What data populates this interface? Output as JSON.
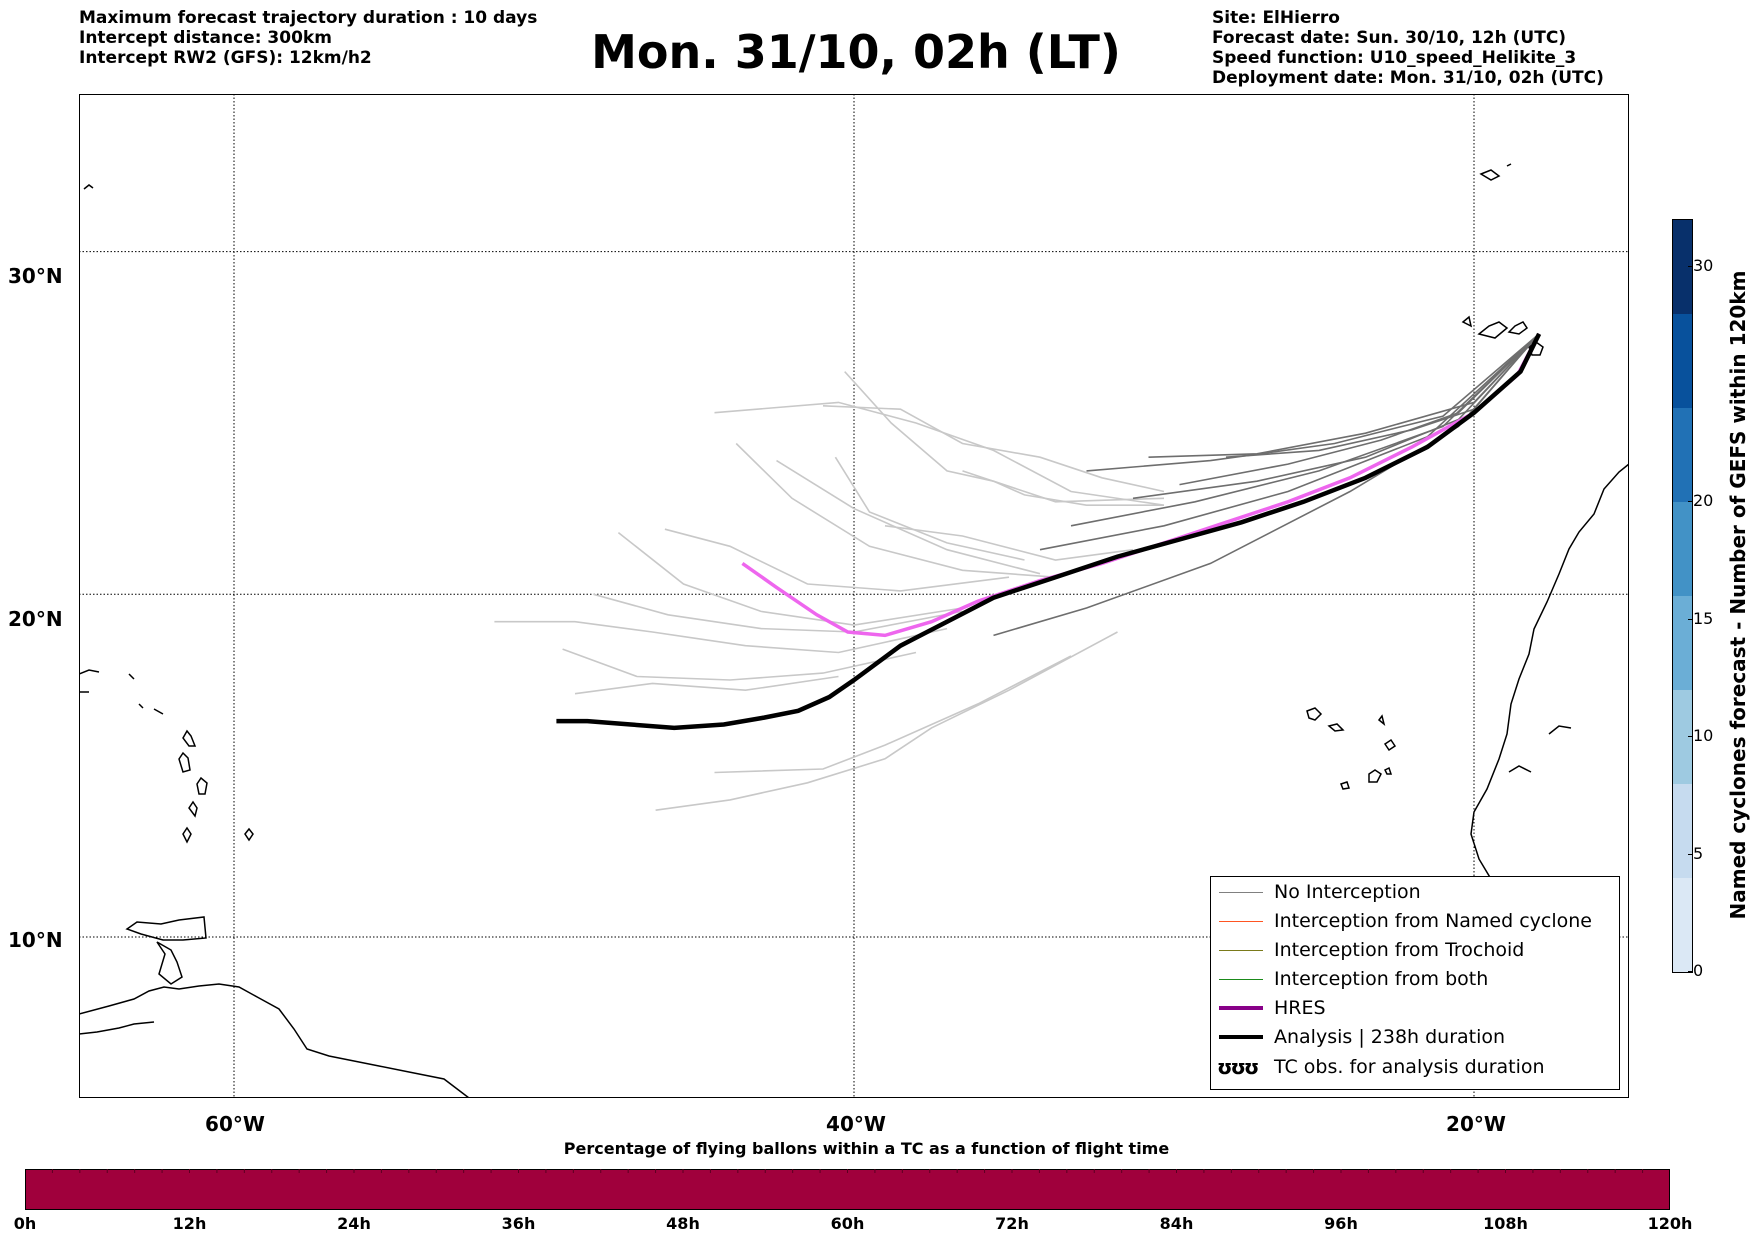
{
  "header_left": {
    "line1": "Maximum forecast trajectory duration : 10 days",
    "line2": "Intercept distance: 300km",
    "line3": "Intercept RW2 (GFS):  12km/h2"
  },
  "title": "Mon. 31/10, 02h (LT)",
  "header_right": {
    "line1": "Site: ElHierro",
    "line2": "Forecast date: Sun. 30/10, 12h (UTC)",
    "line3": "Speed function: U10_speed_Helikite_3",
    "line4": "Deployment date: Mon. 31/10, 02h (UTC)"
  },
  "map": {
    "lat_labels": [
      "30°N",
      "20°N",
      "10°N"
    ],
    "lon_labels": [
      "60°W",
      "40°W",
      "20°W"
    ],
    "lon_range": [
      -65,
      -15
    ],
    "lat_range": [
      5.3,
      34.6
    ],
    "gridlines": {
      "lats": [
        30,
        20,
        10
      ],
      "lons": [
        -60,
        -40,
        -20
      ]
    },
    "colors": {
      "analysis": "#000000",
      "hres": "#ee66ee",
      "no_interception_dark": "#6e6e6e",
      "no_interception_light": "#c8c8c8",
      "coast": "#000000"
    },
    "analysis_track": [
      [
        -49.6,
        16.3
      ],
      [
        -48.6,
        16.3
      ],
      [
        -47.2,
        16.2
      ],
      [
        -45.8,
        16.1
      ],
      [
        -44.2,
        16.2
      ],
      [
        -42.9,
        16.4
      ],
      [
        -41.8,
        16.6
      ],
      [
        -40.8,
        17.0
      ],
      [
        -40.0,
        17.5
      ],
      [
        -38.5,
        18.5
      ],
      [
        -37.0,
        19.2
      ],
      [
        -35.5,
        19.9
      ],
      [
        -33.5,
        20.5
      ],
      [
        -31.5,
        21.1
      ],
      [
        -29.5,
        21.6
      ],
      [
        -27.5,
        22.1
      ],
      [
        -25.5,
        22.7
      ],
      [
        -23.5,
        23.4
      ],
      [
        -21.5,
        24.3
      ],
      [
        -20.0,
        25.3
      ],
      [
        -18.5,
        26.5
      ],
      [
        -17.9,
        27.6
      ]
    ],
    "hres_track": [
      [
        -43.6,
        20.9
      ],
      [
        -42.5,
        20.2
      ],
      [
        -41.2,
        19.4
      ],
      [
        -40.2,
        18.9
      ],
      [
        -39.0,
        18.8
      ],
      [
        -37.5,
        19.2
      ],
      [
        -36.0,
        19.8
      ],
      [
        -34.0,
        20.4
      ],
      [
        -32.0,
        20.9
      ],
      [
        -30.0,
        21.5
      ],
      [
        -28.0,
        22.1
      ],
      [
        -26.0,
        22.7
      ],
      [
        -24.0,
        23.4
      ],
      [
        -22.0,
        24.3
      ],
      [
        -20.0,
        25.3
      ],
      [
        -18.6,
        26.4
      ],
      [
        -17.9,
        27.6
      ]
    ],
    "ensemble_tracks": [
      [
        [
          -28.0,
          24.0
        ],
        [
          -25.0,
          24.2
        ],
        [
          -22.0,
          24.8
        ],
        [
          -20.0,
          25.4
        ],
        [
          -17.9,
          27.6
        ]
      ],
      [
        [
          -29.5,
          23.2
        ],
        [
          -26.0,
          23.8
        ],
        [
          -23.0,
          24.5
        ],
        [
          -20.5,
          25.3
        ],
        [
          -17.9,
          27.6
        ]
      ],
      [
        [
          -31.0,
          22.8
        ],
        [
          -27.0,
          23.3
        ],
        [
          -23.5,
          24.0
        ],
        [
          -20.5,
          25.1
        ],
        [
          -17.9,
          27.6
        ]
      ],
      [
        [
          -33.0,
          22.0
        ],
        [
          -29.0,
          22.7
        ],
        [
          -25.0,
          23.6
        ],
        [
          -21.0,
          24.9
        ],
        [
          -17.9,
          27.6
        ]
      ],
      [
        [
          -34.0,
          21.3
        ],
        [
          -30.0,
          22.0
        ],
        [
          -26.0,
          23.0
        ],
        [
          -21.5,
          24.6
        ],
        [
          -17.9,
          27.6
        ]
      ],
      [
        [
          -35.5,
          18.8
        ],
        [
          -32.5,
          19.6
        ],
        [
          -28.5,
          20.9
        ],
        [
          -24.0,
          23.0
        ],
        [
          -20.5,
          24.9
        ],
        [
          -17.9,
          27.6
        ]
      ],
      [
        [
          -30.5,
          24.0
        ],
        [
          -27.0,
          24.1
        ],
        [
          -23.5,
          24.7
        ],
        [
          -20.0,
          25.6
        ],
        [
          -17.9,
          27.6
        ]
      ],
      [
        [
          -32.5,
          23.6
        ],
        [
          -28.5,
          23.9
        ],
        [
          -24.5,
          24.4
        ],
        [
          -21.0,
          25.2
        ],
        [
          -17.9,
          27.6
        ]
      ]
    ],
    "ensemble_light_tracks": [
      [
        [
          -40.3,
          26.5
        ],
        [
          -38.8,
          25.0
        ],
        [
          -37.0,
          23.6
        ],
        [
          -35.5,
          23.3
        ],
        [
          -33.5,
          22.7
        ],
        [
          -30.0,
          22.8
        ]
      ],
      [
        [
          -41.0,
          25.5
        ],
        [
          -38.5,
          25.4
        ],
        [
          -36.5,
          24.4
        ],
        [
          -34.0,
          24.0
        ],
        [
          -32.0,
          23.4
        ],
        [
          -30.0,
          23.0
        ]
      ],
      [
        [
          -44.5,
          25.3
        ],
        [
          -40.5,
          25.6
        ],
        [
          -38.0,
          25.0
        ],
        [
          -35.5,
          24.2
        ],
        [
          -33.0,
          23.0
        ],
        [
          -30.0,
          22.6
        ]
      ],
      [
        [
          -43.8,
          24.4
        ],
        [
          -42.0,
          22.8
        ],
        [
          -39.5,
          21.4
        ],
        [
          -36.5,
          20.7
        ],
        [
          -33.5,
          20.5
        ]
      ],
      [
        [
          -42.5,
          23.9
        ],
        [
          -40.0,
          22.5
        ],
        [
          -37.0,
          21.3
        ],
        [
          -34.0,
          20.6
        ]
      ],
      [
        [
          -40.6,
          24.0
        ],
        [
          -39.5,
          22.4
        ],
        [
          -37.0,
          21.5
        ],
        [
          -34.5,
          21.0
        ]
      ],
      [
        [
          -46.1,
          21.9
        ],
        [
          -44.0,
          21.4
        ],
        [
          -41.5,
          20.3
        ],
        [
          -38.5,
          20.1
        ],
        [
          -35.0,
          20.5
        ]
      ],
      [
        [
          -47.6,
          21.8
        ],
        [
          -45.5,
          20.3
        ],
        [
          -43.0,
          19.5
        ],
        [
          -40.0,
          19.1
        ],
        [
          -36.5,
          19.6
        ]
      ],
      [
        [
          -48.4,
          20.0
        ],
        [
          -46.0,
          19.4
        ],
        [
          -43.0,
          19.0
        ],
        [
          -40.0,
          18.9
        ],
        [
          -36.5,
          19.5
        ]
      ],
      [
        [
          -51.6,
          19.2
        ],
        [
          -49.0,
          19.2
        ],
        [
          -46.5,
          18.9
        ],
        [
          -43.5,
          18.5
        ],
        [
          -40.5,
          18.3
        ],
        [
          -37.0,
          19.0
        ]
      ],
      [
        [
          -49.4,
          18.4
        ],
        [
          -47.0,
          17.6
        ],
        [
          -44.0,
          17.5
        ],
        [
          -41.0,
          17.7
        ],
        [
          -38.0,
          18.3
        ]
      ],
      [
        [
          -49.0,
          17.1
        ],
        [
          -46.5,
          17.4
        ],
        [
          -43.5,
          17.2
        ],
        [
          -40.5,
          17.6
        ]
      ],
      [
        [
          -46.4,
          13.7
        ],
        [
          -44.0,
          14.0
        ],
        [
          -41.5,
          14.5
        ],
        [
          -39.0,
          15.2
        ],
        [
          -37.5,
          16.1
        ],
        [
          -35.0,
          17.2
        ],
        [
          -31.5,
          18.9
        ]
      ],
      [
        [
          -44.5,
          14.8
        ],
        [
          -41.0,
          14.9
        ],
        [
          -39.0,
          15.6
        ],
        [
          -36.0,
          16.8
        ],
        [
          -33.0,
          18.2
        ]
      ],
      [
        [
          -36.5,
          23.6
        ],
        [
          -35.5,
          23.3
        ],
        [
          -34.5,
          22.9
        ],
        [
          -32.5,
          22.6
        ],
        [
          -30.0,
          22.6
        ]
      ],
      [
        [
          -39.0,
          22.0
        ],
        [
          -36.5,
          21.7
        ],
        [
          -33.5,
          21.0
        ],
        [
          -31.0,
          21.3
        ]
      ]
    ],
    "legend": {
      "no_interception": "No Interception",
      "named_cyclone": "Interception from Named cyclone",
      "trochoid": "Interception from Trochoid",
      "both": "Interception from both",
      "hres": "HRES",
      "analysis": "Analysis | 238h duration",
      "tc_obs_glyph": "ʊʊʊ",
      "tc_obs": "TC obs. for analysis duration",
      "colors": {
        "no_interception": "#808080",
        "named_cyclone": "#ff5522",
        "trochoid": "#7a7a1a",
        "both": "#1a8a1a",
        "hres": "#880088",
        "analysis": "#000000"
      }
    }
  },
  "colorbar": {
    "label": "Named cyclones forecast - Number of GEFS within 120km",
    "ticks": [
      "0",
      "5",
      "10",
      "15",
      "20",
      "30"
    ],
    "tick_values": [
      0,
      5,
      10,
      15,
      20,
      30
    ],
    "range": [
      0,
      32
    ],
    "colors": [
      "#dbe8f5",
      "#c6dbef",
      "#9ecae1",
      "#6baed6",
      "#4292c6",
      "#2171b5",
      "#08519c",
      "#08306b"
    ]
  },
  "percentage_bar": {
    "title": "Percentage of flying ballons within a TC as a function of flight time",
    "ticks": [
      "0h",
      "12h",
      "24h",
      "36h",
      "48h",
      "60h",
      "72h",
      "84h",
      "96h",
      "108h",
      "120h"
    ],
    "color": "#a0003c"
  }
}
